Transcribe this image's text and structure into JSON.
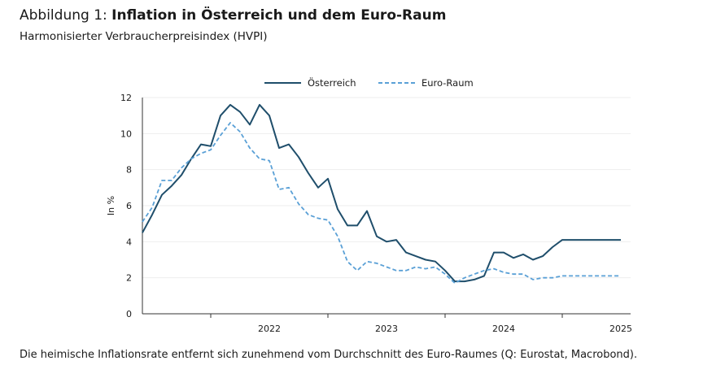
{
  "header": {
    "title_prefix": "Abbildung 1: ",
    "title_bold": "Inflation in Österreich und dem Euro-Raum",
    "subtitle": "Harmonisierter Verbraucherpreisindex (HVPI)"
  },
  "footnote": "Die heimische Inflationsrate entfernt sich zunehmend vom Durchschnitt des Euro-Raumes (Q: Eurostat, Macrobond).",
  "colors": {
    "austria": "#1f4e6b",
    "euro": "#5aa0d6",
    "axis": "#333333",
    "grid": "#eeeeee"
  },
  "chart_data": {
    "type": "line",
    "ylabel": "In %",
    "ylim": [
      0,
      12
    ],
    "yticks": [
      0,
      2,
      4,
      6,
      8,
      10,
      12
    ],
    "xlim": [
      "2021-06",
      "2025-08"
    ],
    "year_labels": [
      {
        "label": "2022",
        "x": "2022-07"
      },
      {
        "label": "2023",
        "x": "2023-07"
      },
      {
        "label": "2024",
        "x": "2024-07"
      },
      {
        "label": "2025",
        "x": "2025-07"
      }
    ],
    "x": [
      "2021-06",
      "2021-07",
      "2021-08",
      "2021-09",
      "2021-10",
      "2021-11",
      "2021-12",
      "2022-01",
      "2022-02",
      "2022-03",
      "2022-04",
      "2022-05",
      "2022-06",
      "2022-07",
      "2022-08",
      "2022-09",
      "2022-10",
      "2022-11",
      "2022-12",
      "2023-01",
      "2023-02",
      "2023-03",
      "2023-04",
      "2023-05",
      "2023-06",
      "2023-07",
      "2023-08",
      "2023-09",
      "2023-10",
      "2023-11",
      "2023-12",
      "2024-01",
      "2024-02",
      "2024-03",
      "2024-04",
      "2024-05",
      "2024-06",
      "2024-07",
      "2024-08",
      "2024-09",
      "2024-10",
      "2024-11",
      "2024-12",
      "2025-01",
      "2025-02",
      "2025-03",
      "2025-04",
      "2025-05",
      "2025-06",
      "2025-07"
    ],
    "legend_position": "top-center",
    "grid": true,
    "series": [
      {
        "name": "Österreich",
        "style": "solid",
        "values": [
          4.5,
          5.5,
          6.6,
          7.1,
          7.7,
          8.6,
          9.4,
          9.3,
          11.0,
          11.6,
          11.2,
          10.5,
          11.6,
          11.0,
          9.2,
          9.4,
          8.7,
          7.8,
          7.0,
          7.5,
          5.8,
          4.9,
          4.9,
          5.7,
          4.3,
          4.0,
          4.1,
          3.4,
          3.2,
          3.0,
          2.9,
          2.4,
          1.8,
          1.8,
          1.9,
          2.1,
          3.4,
          3.4,
          3.1,
          3.3,
          3.0,
          3.2,
          3.7,
          4.1,
          4.1,
          4.1,
          4.1,
          4.1,
          4.1,
          4.1
        ]
      },
      {
        "name": "Euro-Raum",
        "style": "dashed",
        "values": [
          5.1,
          5.9,
          7.4,
          7.4,
          8.1,
          8.6,
          8.9,
          9.1,
          9.9,
          10.6,
          10.1,
          9.2,
          8.6,
          8.5,
          6.9,
          7.0,
          6.1,
          5.5,
          5.3,
          5.2,
          4.3,
          2.9,
          2.4,
          2.9,
          2.8,
          2.6,
          2.4,
          2.4,
          2.6,
          2.5,
          2.6,
          2.2,
          1.7,
          2.0,
          2.2,
          2.4,
          2.5,
          2.3,
          2.2,
          2.2,
          1.9,
          2.0,
          2.0,
          2.1,
          2.1,
          2.1,
          2.1,
          2.1,
          2.1,
          2.1
        ]
      }
    ]
  }
}
